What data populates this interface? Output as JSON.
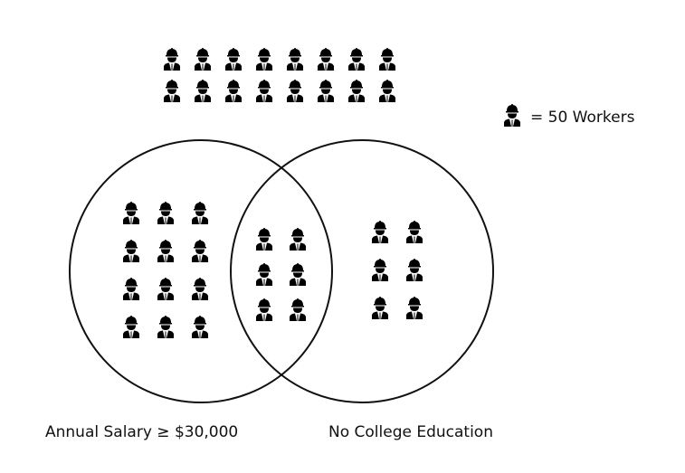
{
  "legend": {
    "icon": "worker-hardhat-icon",
    "text": "= 50 Workers"
  },
  "sets": [
    {
      "label": "Annual Salary ≥ $30,000"
    },
    {
      "label": "No College Education"
    }
  ],
  "icon_counts": {
    "outside_both": 16,
    "salary_only": 12,
    "both": 6,
    "no_college_only": 6
  },
  "colors": {
    "stroke": "#111111",
    "icon": "#000000"
  }
}
